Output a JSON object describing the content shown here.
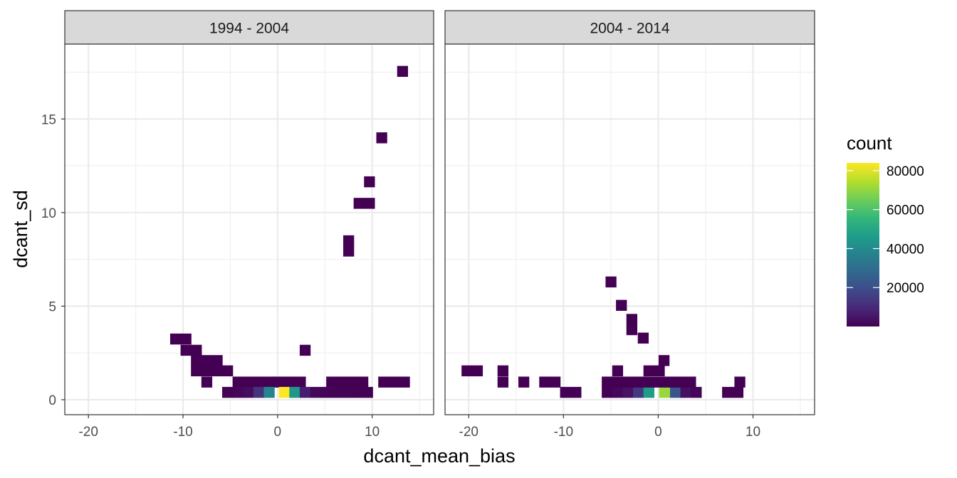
{
  "chart_data": {
    "type": "heatmap",
    "xlabel": "dcant_mean_bias",
    "ylabel": "dcant_sd",
    "xlim": [
      -22.5,
      16.5
    ],
    "ylim": [
      -0.8,
      19.0
    ],
    "x_ticks": [
      -20,
      -10,
      0,
      10
    ],
    "x_tick_labels": [
      "-20",
      "-10",
      "0",
      "10"
    ],
    "y_ticks": [
      0,
      5,
      10,
      15
    ],
    "y_tick_labels": [
      "0",
      "5",
      "10",
      "15"
    ],
    "bin_width_x": 1.12,
    "bin_width_y": 0.57,
    "grid": true,
    "legend": {
      "title": "count",
      "position": "right",
      "ticks": [
        20000,
        40000,
        60000,
        80000
      ],
      "tick_labels": [
        "20000",
        "40000",
        "60000",
        "80000"
      ],
      "min": 1,
      "max": 84000,
      "colormap": [
        "#440154",
        "#482878",
        "#3e4a89",
        "#31688e",
        "#26828e",
        "#1f9e89",
        "#35b779",
        "#6ece58",
        "#b5de2b",
        "#fde725"
      ]
    },
    "panels": [
      {
        "label": "1994 - 2004",
        "cells": [
          [
            -10.8,
            3.25,
            20
          ],
          [
            -9.7,
            3.25,
            20
          ],
          [
            -9.7,
            2.65,
            20
          ],
          [
            -8.6,
            2.65,
            20
          ],
          [
            -8.6,
            2.1,
            20
          ],
          [
            -7.5,
            2.1,
            20
          ],
          [
            -6.4,
            2.1,
            20
          ],
          [
            -8.6,
            1.55,
            20
          ],
          [
            -7.5,
            1.55,
            20
          ],
          [
            -6.4,
            1.55,
            20
          ],
          [
            -5.3,
            1.55,
            20
          ],
          [
            -7.5,
            0.95,
            20
          ],
          [
            -4.2,
            0.95,
            30
          ],
          [
            -3.1,
            0.95,
            30
          ],
          [
            -2.0,
            0.95,
            40
          ],
          [
            -0.9,
            0.95,
            40
          ],
          [
            0.2,
            0.95,
            40
          ],
          [
            1.3,
            0.95,
            30
          ],
          [
            2.4,
            0.95,
            30
          ],
          [
            5.7,
            0.95,
            20
          ],
          [
            6.8,
            0.95,
            20
          ],
          [
            7.9,
            0.95,
            20
          ],
          [
            9.0,
            0.95,
            20
          ],
          [
            11.2,
            0.95,
            20
          ],
          [
            12.3,
            0.95,
            20
          ],
          [
            13.4,
            0.95,
            20
          ],
          [
            -5.3,
            0.4,
            300
          ],
          [
            -4.2,
            0.4,
            1200
          ],
          [
            -3.1,
            0.4,
            2500
          ],
          [
            -2.0,
            0.4,
            12000
          ],
          [
            -0.9,
            0.4,
            38000
          ],
          [
            0.7,
            0.4,
            84000
          ],
          [
            1.8,
            0.4,
            44000
          ],
          [
            2.9,
            0.4,
            7000
          ],
          [
            4.0,
            0.4,
            2000
          ],
          [
            5.1,
            0.4,
            900
          ],
          [
            6.2,
            0.4,
            600
          ],
          [
            7.3,
            0.4,
            500
          ],
          [
            8.4,
            0.4,
            300
          ],
          [
            9.5,
            0.4,
            200
          ],
          [
            2.9,
            2.65,
            20
          ],
          [
            7.5,
            7.95,
            20
          ],
          [
            7.5,
            8.5,
            20
          ],
          [
            8.6,
            10.5,
            20
          ],
          [
            9.7,
            10.5,
            20
          ],
          [
            9.7,
            11.65,
            20
          ],
          [
            11.0,
            14.0,
            20
          ],
          [
            13.2,
            17.55,
            20
          ]
        ]
      },
      {
        "label": "2004 - 2014",
        "cells": [
          [
            -20.2,
            1.55,
            20
          ],
          [
            -19.1,
            1.55,
            20
          ],
          [
            -16.4,
            1.55,
            20
          ],
          [
            -16.4,
            0.95,
            20
          ],
          [
            -14.2,
            0.95,
            20
          ],
          [
            -12.0,
            0.95,
            20
          ],
          [
            -10.9,
            0.95,
            20
          ],
          [
            -9.8,
            0.4,
            20
          ],
          [
            -8.7,
            0.4,
            20
          ],
          [
            -5.4,
            0.4,
            300
          ],
          [
            -4.3,
            0.4,
            1500
          ],
          [
            -3.2,
            0.4,
            4000
          ],
          [
            -2.1,
            0.4,
            14000
          ],
          [
            -1.0,
            0.4,
            46000
          ],
          [
            0.65,
            0.4,
            71000
          ],
          [
            1.8,
            0.4,
            22000
          ],
          [
            2.9,
            0.4,
            3500
          ],
          [
            4.0,
            0.4,
            800
          ],
          [
            7.3,
            0.4,
            20
          ],
          [
            8.4,
            0.4,
            20
          ],
          [
            -5.4,
            0.95,
            20
          ],
          [
            -4.3,
            0.95,
            20
          ],
          [
            -3.2,
            0.95,
            30
          ],
          [
            -2.1,
            0.95,
            30
          ],
          [
            -1.0,
            0.95,
            40
          ],
          [
            0.1,
            0.95,
            40
          ],
          [
            1.2,
            0.95,
            30
          ],
          [
            2.3,
            0.95,
            30
          ],
          [
            3.4,
            0.95,
            20
          ],
          [
            8.6,
            0.95,
            20
          ],
          [
            -4.3,
            1.55,
            20
          ],
          [
            -1.0,
            1.55,
            20
          ],
          [
            0.1,
            1.55,
            20
          ],
          [
            0.6,
            2.1,
            20
          ],
          [
            -1.6,
            3.3,
            20
          ],
          [
            -2.8,
            3.75,
            20
          ],
          [
            -2.8,
            4.3,
            20
          ],
          [
            -3.9,
            5.05,
            20
          ],
          [
            -5.0,
            6.3,
            20
          ]
        ]
      }
    ]
  }
}
